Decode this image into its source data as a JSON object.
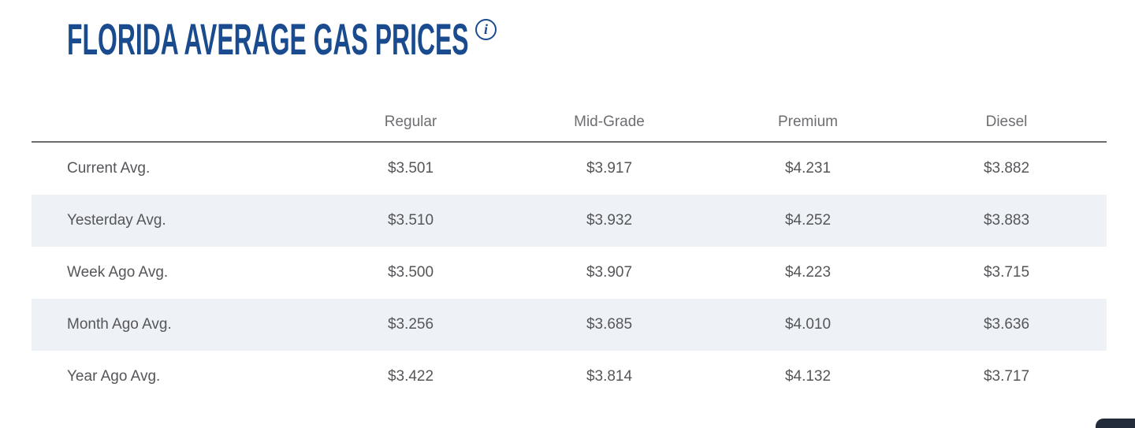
{
  "header": {
    "title": "FLORIDA AVERAGE GAS PRICES",
    "info_icon_glyph": "i"
  },
  "colors": {
    "title_blue": "#1a4b8e",
    "header_text_gray": "#6d6e71",
    "cell_text_gray": "#55565a",
    "row_alt_background": "#eef2f7",
    "header_rule_gray": "#6a6b6d",
    "corner_widget_dark": "#232c3a"
  },
  "table": {
    "columns": [
      "Regular",
      "Mid-Grade",
      "Premium",
      "Diesel"
    ],
    "rows": [
      {
        "label": "Current Avg.",
        "values": [
          "$3.501",
          "$3.917",
          "$4.231",
          "$3.882"
        ]
      },
      {
        "label": "Yesterday Avg.",
        "values": [
          "$3.510",
          "$3.932",
          "$4.252",
          "$3.883"
        ]
      },
      {
        "label": "Week Ago Avg.",
        "values": [
          "$3.500",
          "$3.907",
          "$4.223",
          "$3.715"
        ]
      },
      {
        "label": "Month Ago Avg.",
        "values": [
          "$3.256",
          "$3.685",
          "$4.010",
          "$3.636"
        ]
      },
      {
        "label": "Year Ago Avg.",
        "values": [
          "$3.422",
          "$3.814",
          "$4.132",
          "$3.717"
        ]
      }
    ]
  }
}
